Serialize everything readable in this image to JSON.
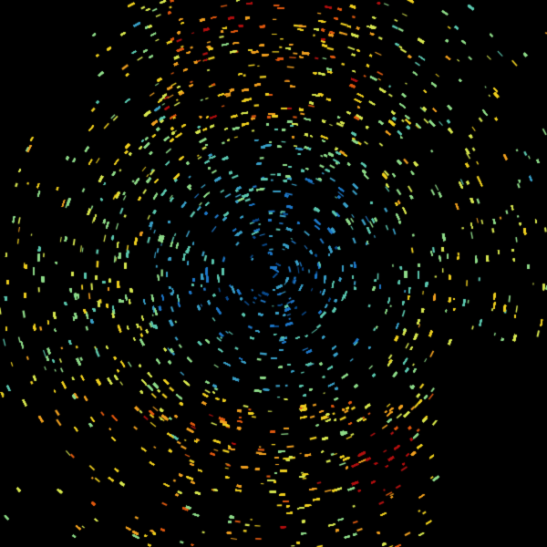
{
  "image": {
    "kind": "radar-reflectivity-sweep",
    "background_color": "#000000",
    "palette": [
      "#0a4a8c",
      "#1f78c8",
      "#3aa0c8",
      "#5cc8b0",
      "#8fdc8a",
      "#d8e850",
      "#f0d020",
      "#f0a020",
      "#e05a10",
      "#b01010"
    ]
  }
}
